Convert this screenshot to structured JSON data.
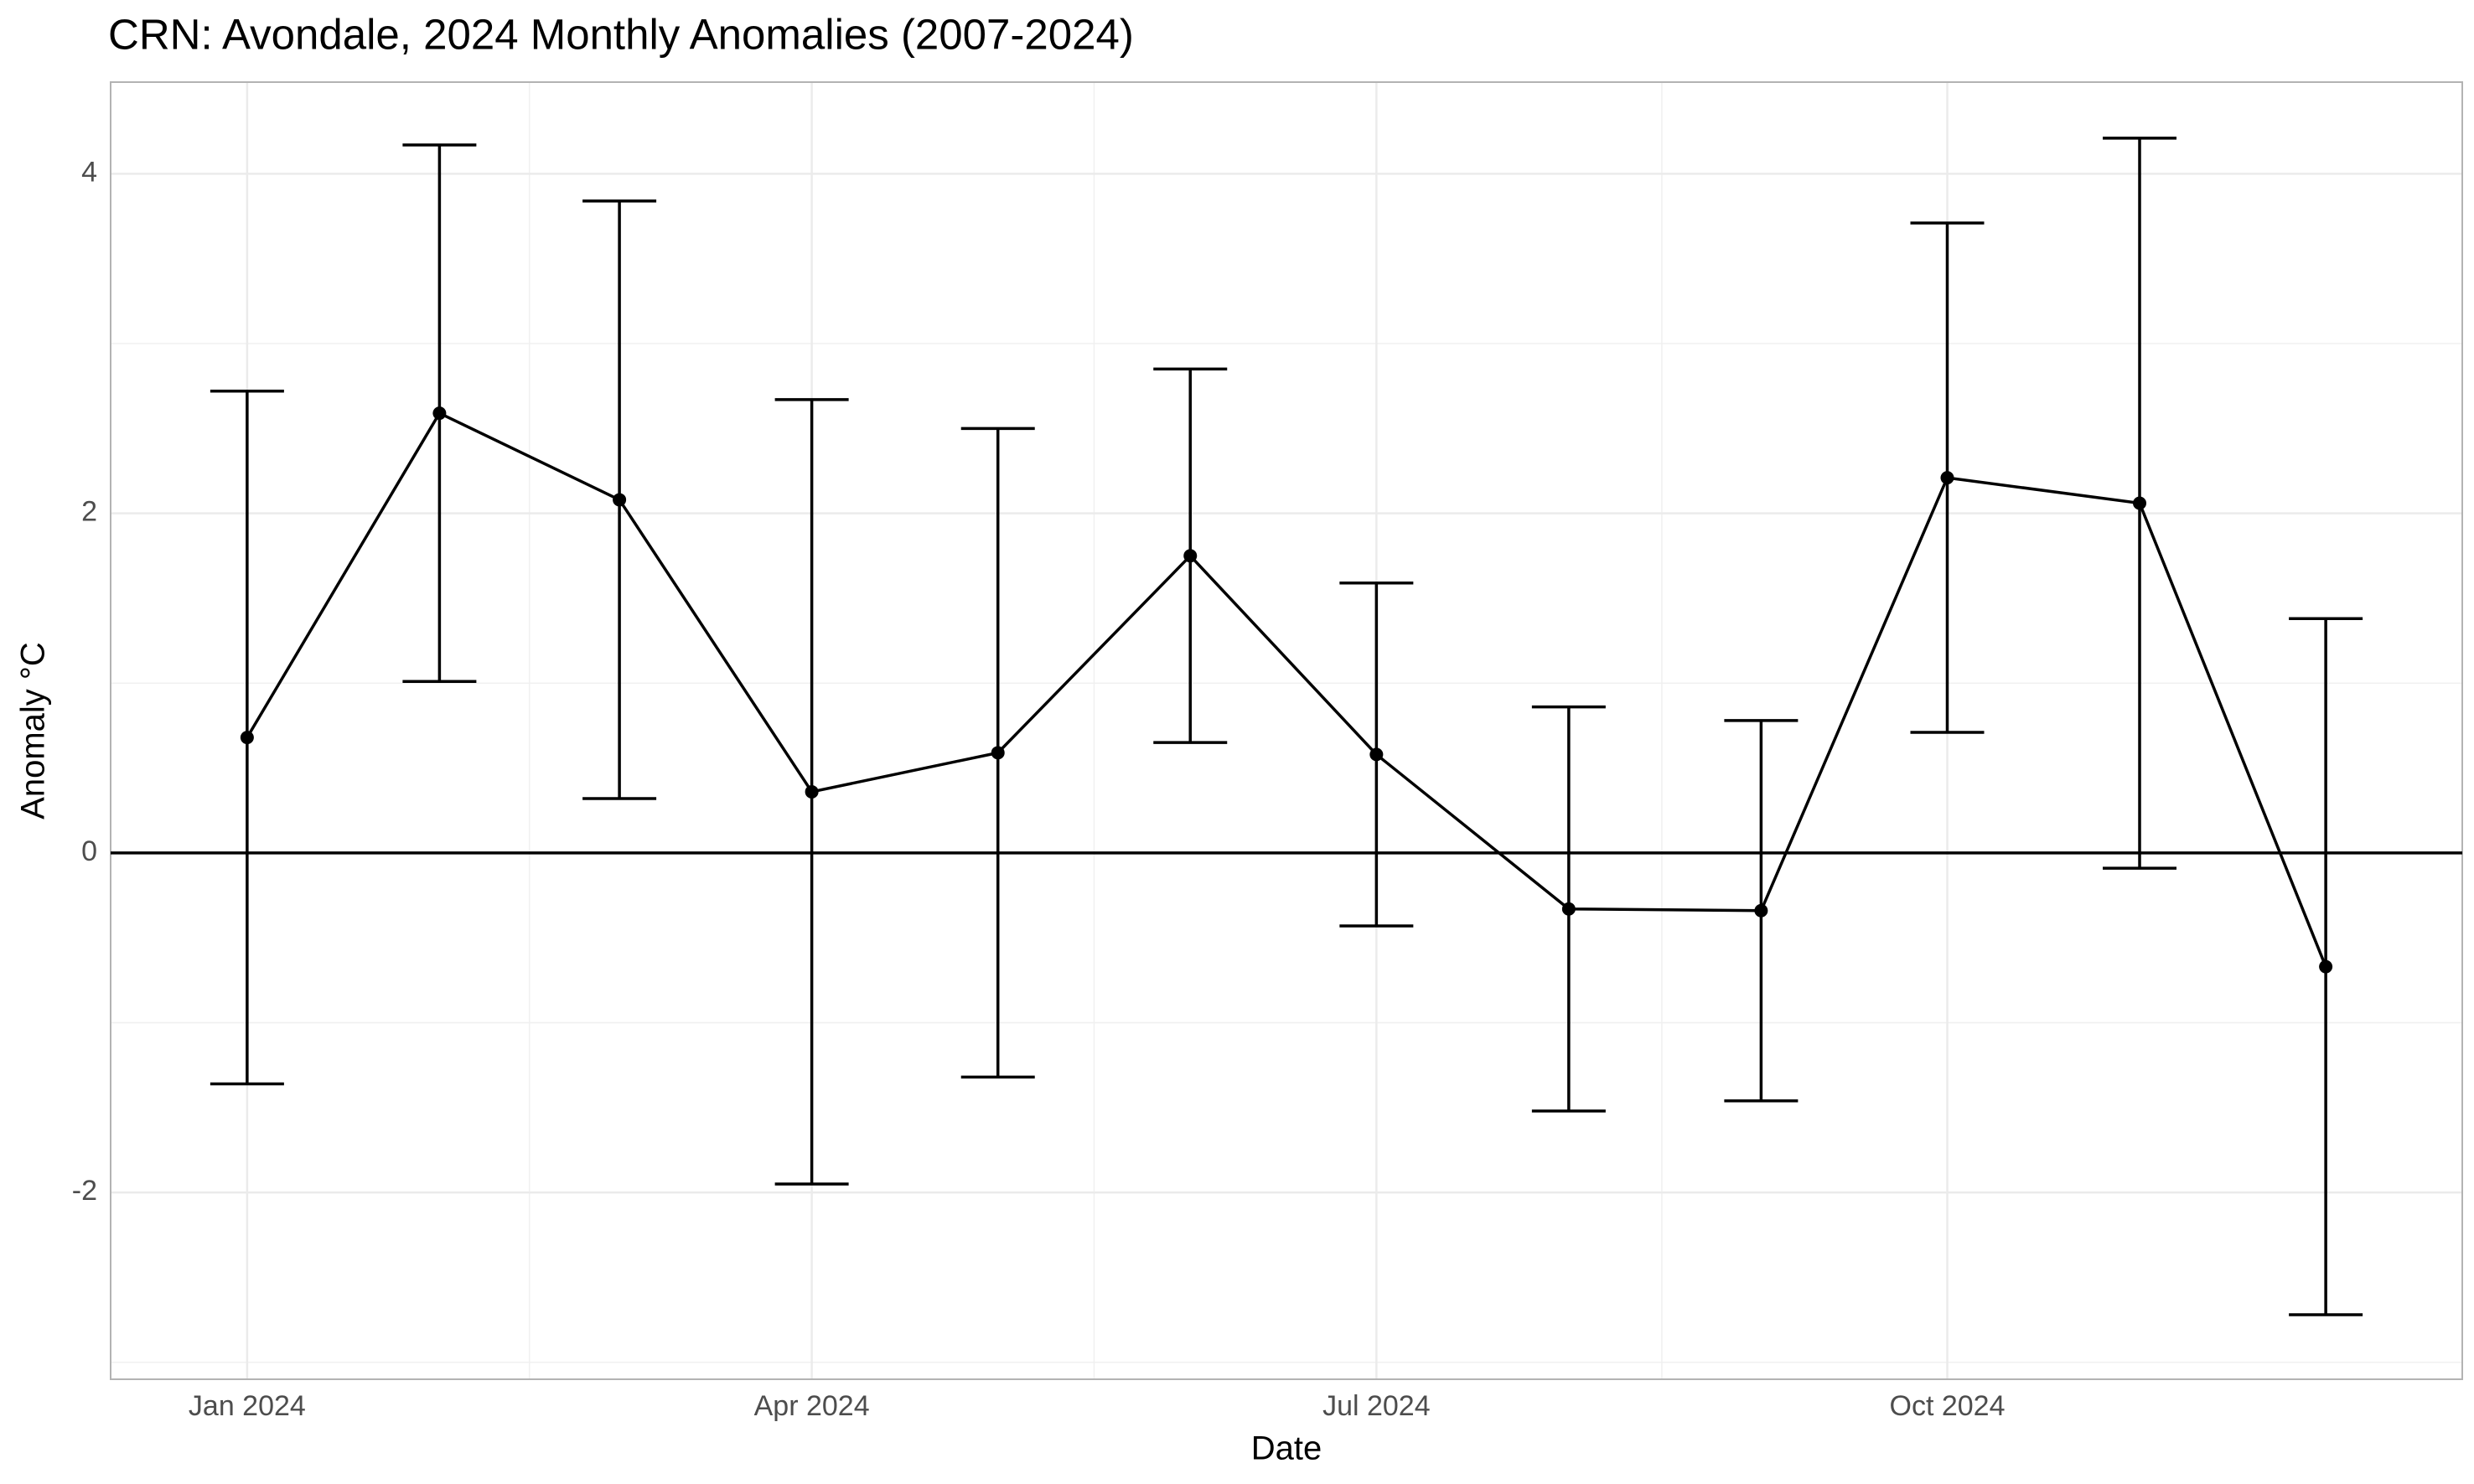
{
  "chart_data": {
    "type": "errorbar-line",
    "title": "CRN: Avondale, 2024 Monthly Anomalies (2007-2024)",
    "x_label": "Date",
    "y_label": "Anomaly °C",
    "x": [
      "2024-01",
      "2024-02",
      "2024-03",
      "2024-04",
      "2024-05",
      "2024-06",
      "2024-07",
      "2024-08",
      "2024-09",
      "2024-10",
      "2024-11",
      "2024-12"
    ],
    "values": [
      0.68,
      2.59,
      2.08,
      0.36,
      0.59,
      1.75,
      0.58,
      -0.33,
      -0.34,
      2.21,
      2.06,
      -0.67
    ],
    "errors": [
      2.04,
      1.58,
      1.76,
      2.31,
      1.91,
      1.1,
      1.01,
      1.19,
      1.12,
      1.5,
      2.15,
      2.05
    ],
    "color": "#000000",
    "xticks": [
      {
        "value": "2024-01",
        "label": "Jan 2024"
      },
      {
        "value": "2024-04",
        "label": "Apr 2024"
      },
      {
        "value": "2024-07",
        "label": "Jul 2024"
      },
      {
        "value": "2024-10",
        "label": "Oct 2024"
      }
    ],
    "ylim": [
      -3.1,
      4.54
    ],
    "yticks": [
      -2,
      0,
      2,
      4
    ],
    "hline": 0,
    "grid": true
  }
}
